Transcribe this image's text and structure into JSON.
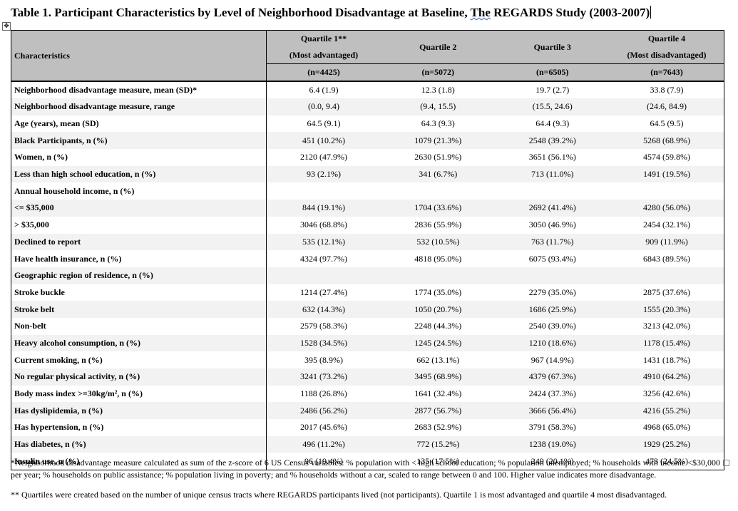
{
  "title": "Table 1. Participant Characteristics by Level of Neighborhood Disadvantage at Baseline, ",
  "title_spell": "The",
  "title_end": " REGARDS Study (2003-2007)",
  "header": {
    "characteristics": "Characteristics",
    "q1": "Quartile 1**",
    "q1_sub": "(Most advantaged)",
    "q2": "Quartile 2",
    "q3": "Quartile 3",
    "q4": "Quartile 4",
    "q4_sub": "(Most disadvantaged)",
    "n1": "(n=4425)",
    "n2": "(n=5072)",
    "n3": "(n=6505)",
    "n4": "(n=7643)"
  },
  "rows": [
    {
      "label": "Neighborhood disadvantage measure, mean (SD)*",
      "values": [
        "6.4 (1.9)",
        "12.3 (1.8)",
        "19.7 (2.7)",
        "33.8 (7.9)"
      ]
    },
    {
      "label": "Neighborhood disadvantage measure, range",
      "values": [
        "(0.0, 9.4)",
        "(9.4, 15.5)",
        "(15.5, 24.6)",
        "(24.6, 84.9)"
      ]
    },
    {
      "label": "Age (years), mean (SD)",
      "values": [
        "64.5 (9.1)",
        "64.3 (9.3)",
        "64.4 (9.3)",
        "64.5 (9.5)"
      ]
    },
    {
      "label": "Black Participants, n (%)",
      "values": [
        "451 (10.2%)",
        "1079 (21.3%)",
        "2548 (39.2%)",
        "5268 (68.9%)"
      ]
    },
    {
      "label": "Women, n (%)",
      "values": [
        "2120 (47.9%)",
        "2630 (51.9%)",
        "3651 (56.1%)",
        "4574 (59.8%)"
      ]
    },
    {
      "label": "Less than high school education, n (%)",
      "values": [
        "93 (2.1%)",
        "341 (6.7%)",
        "713 (11.0%)",
        "1491 (19.5%)"
      ]
    },
    {
      "label": "Annual household income, n (%)",
      "values": [
        "",
        "",
        "",
        ""
      ]
    },
    {
      "label": "<= $35,000",
      "values": [
        "844 (19.1%)",
        "1704 (33.6%)",
        "2692 (41.4%)",
        "4280 (56.0%)"
      ]
    },
    {
      "label": "> $35,000",
      "values": [
        "3046 (68.8%)",
        "2836 (55.9%)",
        "3050 (46.9%)",
        "2454 (32.1%)"
      ]
    },
    {
      "label": "Declined to report",
      "values": [
        "535 (12.1%)",
        "532 (10.5%)",
        "763 (11.7%)",
        "909 (11.9%)"
      ]
    },
    {
      "label": "Have health insurance, n (%)",
      "values": [
        "4324 (97.7%)",
        "4818 (95.0%)",
        "6075 (93.4%)",
        "6843 (89.5%)"
      ]
    },
    {
      "label": "Geographic region of residence, n (%)",
      "values": [
        "",
        "",
        "",
        ""
      ]
    },
    {
      "label": "Stroke buckle",
      "values": [
        "1214 (27.4%)",
        "1774 (35.0%)",
        "2279 (35.0%)",
        "2875 (37.6%)"
      ]
    },
    {
      "label": "Stroke belt",
      "values": [
        "632 (14.3%)",
        "1050 (20.7%)",
        "1686 (25.9%)",
        "1555 (20.3%)"
      ]
    },
    {
      "label": "Non-belt",
      "values": [
        "2579 (58.3%)",
        "2248 (44.3%)",
        "2540 (39.0%)",
        "3213 (42.0%)"
      ]
    },
    {
      "label": "Heavy alcohol consumption, n (%)",
      "values": [
        "1528 (34.5%)",
        "1245 (24.5%)",
        "1210 (18.6%)",
        "1178 (15.4%)"
      ]
    },
    {
      "label": "Current smoking, n (%)",
      "values": [
        "395 (8.9%)",
        "662 (13.1%)",
        "967 (14.9%)",
        "1431 (18.7%)"
      ]
    },
    {
      "label": "No regular physical activity, n (%)",
      "values": [
        "3241 (73.2%)",
        "3495 (68.9%)",
        "4379 (67.3%)",
        "4910 (64.2%)"
      ]
    },
    {
      "label": "Body mass index >=30kg/m², n (%)",
      "values": [
        "1188 (26.8%)",
        "1641 (32.4%)",
        "2424 (37.3%)",
        "3256 (42.6%)"
      ]
    },
    {
      "label": "Has dyslipidemia, n (%)",
      "values": [
        "2486 (56.2%)",
        "2877 (56.7%)",
        "3666 (56.4%)",
        "4216 (55.2%)"
      ]
    },
    {
      "label": "Has hypertension, n (%)",
      "values": [
        "2017 (45.6%)",
        "2683 (52.9%)",
        "3791 (58.3%)",
        "4968 (65.0%)"
      ]
    },
    {
      "label": "Has diabetes, n (%)",
      "values": [
        "496 (11.2%)",
        "772 (15.2%)",
        "1238 (19.0%)",
        "1929 (25.2%)"
      ]
    },
    {
      "label": "Insulin use, n (%)",
      "values": [
        "96 (19.4%)",
        "135 (17.5%)",
        "249 (20.1%)",
        "473 (24.5%)"
      ]
    }
  ],
  "footnote1": "*Neighborhood disadvantage measure calculated as sum of the z-score of 6 US Census variables: % population with < high school education; % population unemployed; % households with income <$30,000 per year; % households on public assistance; % population living in poverty; and % households without a car, scaled to range between 0 and 100. Higher value indicates more disadvantage.",
  "footnote2": "** Quartiles were created based on the number of unique census tracts where REGARDS participants lived (not participants). Quartile 1 is most advantaged and quartile 4 most disadvantaged.",
  "icons": {
    "move_handle": "table-move-handle-icon",
    "move_glyph": "✥"
  }
}
